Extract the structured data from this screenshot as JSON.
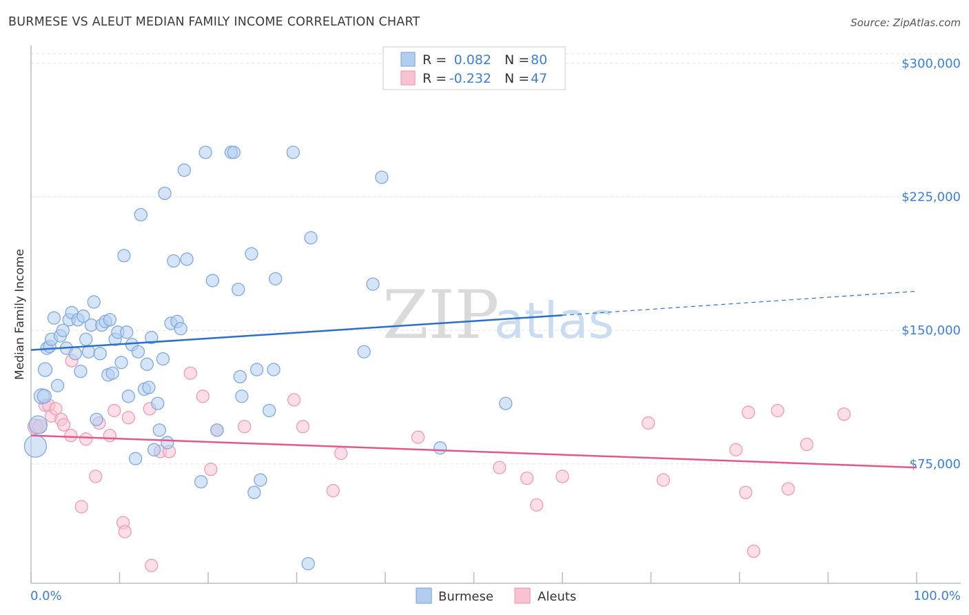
{
  "chart_data": {
    "type": "scatter",
    "title": "BURMESE VS ALEUT MEDIAN FAMILY INCOME CORRELATION CHART",
    "source": "Source: ZipAtlas.com",
    "xlabel": "",
    "ylabel": "Median Family Income",
    "xlim": [
      0,
      100
    ],
    "ylim": [
      8000,
      310000
    ],
    "x_tick_labels": {
      "min": "0.0%",
      "max": "100.0%"
    },
    "y_ticks": [
      {
        "value": 75000,
        "label": "$75,000"
      },
      {
        "value": 150000,
        "label": "$150,000"
      },
      {
        "value": 225000,
        "label": "$225,000"
      },
      {
        "value": 300000,
        "label": "$300,000"
      }
    ],
    "watermark": {
      "zip": "ZIP",
      "atlas": "atlas"
    },
    "legend_stats": [
      {
        "r_label": "R =",
        "r_value": "0.082",
        "n_label": "N =",
        "n_value": "80"
      },
      {
        "r_label": "R =",
        "r_value": "-0.232",
        "n_label": "N =",
        "n_value": "47"
      }
    ],
    "series": [
      {
        "name": "Burmese",
        "color": "#7ea9df",
        "fill": "#b3cdf0",
        "trend_line": {
          "x0": 0,
          "y0": 139000,
          "x1": 60,
          "y1": 158500,
          "dash_to_x": 100,
          "dash_to_y": 172000,
          "color": "#2b6fcc"
        },
        "points": [
          {
            "x": 0.5,
            "y": 85000,
            "s": 16
          },
          {
            "x": 0.8,
            "y": 97000,
            "s": 13
          },
          {
            "x": 1.2,
            "y": 113000,
            "s": 11
          },
          {
            "x": 1.5,
            "y": 113000,
            "s": 10
          },
          {
            "x": 1.6,
            "y": 128000,
            "s": 10
          },
          {
            "x": 1.8,
            "y": 140000,
            "s": 9
          },
          {
            "x": 2.1,
            "y": 141000,
            "s": 9
          },
          {
            "x": 2.3,
            "y": 145000,
            "s": 9
          },
          {
            "x": 2.6,
            "y": 157000,
            "s": 9
          },
          {
            "x": 3.0,
            "y": 119000,
            "s": 9
          },
          {
            "x": 3.3,
            "y": 147000,
            "s": 9
          },
          {
            "x": 3.6,
            "y": 150000,
            "s": 9
          },
          {
            "x": 4.0,
            "y": 140000,
            "s": 9
          },
          {
            "x": 4.3,
            "y": 156000,
            "s": 9
          },
          {
            "x": 4.6,
            "y": 160000,
            "s": 9
          },
          {
            "x": 5.0,
            "y": 137000,
            "s": 9
          },
          {
            "x": 5.3,
            "y": 156000,
            "s": 9
          },
          {
            "x": 5.6,
            "y": 127000,
            "s": 9
          },
          {
            "x": 5.9,
            "y": 158000,
            "s": 9
          },
          {
            "x": 6.2,
            "y": 145000,
            "s": 9
          },
          {
            "x": 6.5,
            "y": 138000,
            "s": 9
          },
          {
            "x": 6.8,
            "y": 153000,
            "s": 9
          },
          {
            "x": 7.1,
            "y": 166000,
            "s": 9
          },
          {
            "x": 7.4,
            "y": 100000,
            "s": 9
          },
          {
            "x": 7.8,
            "y": 137000,
            "s": 9
          },
          {
            "x": 8.0,
            "y": 153000,
            "s": 9
          },
          {
            "x": 8.4,
            "y": 155000,
            "s": 9
          },
          {
            "x": 8.7,
            "y": 125000,
            "s": 9
          },
          {
            "x": 8.9,
            "y": 156000,
            "s": 9
          },
          {
            "x": 9.2,
            "y": 126000,
            "s": 9
          },
          {
            "x": 9.5,
            "y": 145000,
            "s": 9
          },
          {
            "x": 9.8,
            "y": 149000,
            "s": 9
          },
          {
            "x": 10.2,
            "y": 132000,
            "s": 9
          },
          {
            "x": 10.5,
            "y": 192000,
            "s": 9
          },
          {
            "x": 10.8,
            "y": 149000,
            "s": 9
          },
          {
            "x": 11.0,
            "y": 113000,
            "s": 9
          },
          {
            "x": 11.4,
            "y": 142000,
            "s": 9
          },
          {
            "x": 11.8,
            "y": 78000,
            "s": 9
          },
          {
            "x": 12.1,
            "y": 138000,
            "s": 9
          },
          {
            "x": 12.4,
            "y": 215000,
            "s": 9
          },
          {
            "x": 12.8,
            "y": 117000,
            "s": 9
          },
          {
            "x": 13.1,
            "y": 131000,
            "s": 9
          },
          {
            "x": 13.3,
            "y": 118000,
            "s": 9
          },
          {
            "x": 13.6,
            "y": 146000,
            "s": 9
          },
          {
            "x": 13.9,
            "y": 83000,
            "s": 9
          },
          {
            "x": 14.3,
            "y": 109000,
            "s": 9
          },
          {
            "x": 14.5,
            "y": 94000,
            "s": 9
          },
          {
            "x": 14.9,
            "y": 134000,
            "s": 9
          },
          {
            "x": 15.1,
            "y": 227000,
            "s": 9
          },
          {
            "x": 15.4,
            "y": 87000,
            "s": 9
          },
          {
            "x": 15.8,
            "y": 154000,
            "s": 9
          },
          {
            "x": 16.1,
            "y": 189000,
            "s": 9
          },
          {
            "x": 16.5,
            "y": 155000,
            "s": 9
          },
          {
            "x": 16.9,
            "y": 151000,
            "s": 9
          },
          {
            "x": 17.3,
            "y": 240000,
            "s": 9
          },
          {
            "x": 17.6,
            "y": 190000,
            "s": 9
          },
          {
            "x": 19.2,
            "y": 65000,
            "s": 9
          },
          {
            "x": 19.7,
            "y": 250000,
            "s": 9
          },
          {
            "x": 20.5,
            "y": 178000,
            "s": 9
          },
          {
            "x": 21.0,
            "y": 94000,
            "s": 9
          },
          {
            "x": 22.6,
            "y": 250000,
            "s": 9
          },
          {
            "x": 22.9,
            "y": 250000,
            "s": 9
          },
          {
            "x": 23.4,
            "y": 173000,
            "s": 9
          },
          {
            "x": 23.6,
            "y": 124000,
            "s": 9
          },
          {
            "x": 23.8,
            "y": 113000,
            "s": 9
          },
          {
            "x": 24.9,
            "y": 193000,
            "s": 9
          },
          {
            "x": 25.2,
            "y": 59000,
            "s": 9
          },
          {
            "x": 25.5,
            "y": 128000,
            "s": 9
          },
          {
            "x": 25.9,
            "y": 66000,
            "s": 9
          },
          {
            "x": 26.9,
            "y": 105000,
            "s": 9
          },
          {
            "x": 27.4,
            "y": 128000,
            "s": 9
          },
          {
            "x": 27.6,
            "y": 179000,
            "s": 9
          },
          {
            "x": 29.6,
            "y": 250000,
            "s": 9
          },
          {
            "x": 31.3,
            "y": 19000,
            "s": 9
          },
          {
            "x": 31.6,
            "y": 202000,
            "s": 9
          },
          {
            "x": 37.6,
            "y": 138000,
            "s": 9
          },
          {
            "x": 38.6,
            "y": 176000,
            "s": 9
          },
          {
            "x": 39.6,
            "y": 236000,
            "s": 9
          },
          {
            "x": 46.2,
            "y": 84000,
            "s": 9
          },
          {
            "x": 53.6,
            "y": 109000,
            "s": 9
          }
        ]
      },
      {
        "name": "Aleuts",
        "color": "#f09bb5",
        "fill": "#f7c3d2",
        "trend_line": {
          "x0": 0,
          "y0": 91000,
          "x1": 100,
          "y1": 73000,
          "color": "#e5578a"
        },
        "points": [
          {
            "x": 0.5,
            "y": 96000,
            "s": 11
          },
          {
            "x": 1.0,
            "y": 96000,
            "s": 10
          },
          {
            "x": 1.6,
            "y": 108000,
            "s": 9
          },
          {
            "x": 2.0,
            "y": 108000,
            "s": 9
          },
          {
            "x": 2.3,
            "y": 102000,
            "s": 9
          },
          {
            "x": 2.8,
            "y": 106000,
            "s": 9
          },
          {
            "x": 3.4,
            "y": 100000,
            "s": 9
          },
          {
            "x": 3.7,
            "y": 97000,
            "s": 9
          },
          {
            "x": 4.5,
            "y": 91000,
            "s": 9
          },
          {
            "x": 4.6,
            "y": 133000,
            "s": 9
          },
          {
            "x": 5.7,
            "y": 51000,
            "s": 9
          },
          {
            "x": 6.2,
            "y": 89000,
            "s": 9
          },
          {
            "x": 7.3,
            "y": 68000,
            "s": 9
          },
          {
            "x": 7.7,
            "y": 98000,
            "s": 9
          },
          {
            "x": 8.9,
            "y": 91000,
            "s": 9
          },
          {
            "x": 9.4,
            "y": 105000,
            "s": 9
          },
          {
            "x": 10.4,
            "y": 42000,
            "s": 9
          },
          {
            "x": 10.6,
            "y": 37000,
            "s": 9
          },
          {
            "x": 11.0,
            "y": 101000,
            "s": 9
          },
          {
            "x": 13.4,
            "y": 106000,
            "s": 9
          },
          {
            "x": 13.6,
            "y": 18000,
            "s": 9
          },
          {
            "x": 14.6,
            "y": 82000,
            "s": 9
          },
          {
            "x": 15.6,
            "y": 82000,
            "s": 9
          },
          {
            "x": 18.0,
            "y": 126000,
            "s": 9
          },
          {
            "x": 19.4,
            "y": 113000,
            "s": 9
          },
          {
            "x": 20.3,
            "y": 72000,
            "s": 9
          },
          {
            "x": 21.0,
            "y": 94000,
            "s": 9
          },
          {
            "x": 24.1,
            "y": 96000,
            "s": 9
          },
          {
            "x": 29.7,
            "y": 111000,
            "s": 9
          },
          {
            "x": 30.7,
            "y": 96000,
            "s": 9
          },
          {
            "x": 34.1,
            "y": 60000,
            "s": 9
          },
          {
            "x": 35.0,
            "y": 81000,
            "s": 9
          },
          {
            "x": 43.7,
            "y": 90000,
            "s": 9
          },
          {
            "x": 52.9,
            "y": 73000,
            "s": 9
          },
          {
            "x": 56.0,
            "y": 67000,
            "s": 9
          },
          {
            "x": 57.1,
            "y": 52000,
            "s": 9
          },
          {
            "x": 60.0,
            "y": 68000,
            "s": 9
          },
          {
            "x": 69.7,
            "y": 98000,
            "s": 9
          },
          {
            "x": 71.4,
            "y": 66000,
            "s": 9
          },
          {
            "x": 79.6,
            "y": 83000,
            "s": 9
          },
          {
            "x": 80.7,
            "y": 59000,
            "s": 9
          },
          {
            "x": 81.0,
            "y": 104000,
            "s": 9
          },
          {
            "x": 81.6,
            "y": 26000,
            "s": 9
          },
          {
            "x": 84.3,
            "y": 105000,
            "s": 9
          },
          {
            "x": 85.5,
            "y": 61000,
            "s": 9
          },
          {
            "x": 87.6,
            "y": 86000,
            "s": 9
          },
          {
            "x": 91.8,
            "y": 103000,
            "s": 9
          }
        ]
      }
    ]
  }
}
